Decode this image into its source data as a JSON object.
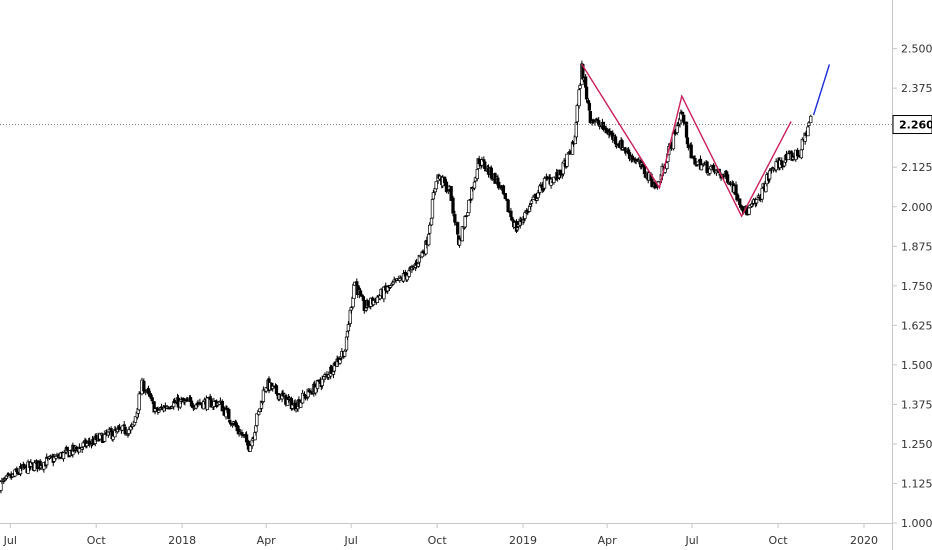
{
  "chart_data": {
    "type": "candlestick",
    "title": "",
    "xlabel": "",
    "ylabel": "",
    "ylim": [
      1.0,
      2.6
    ],
    "xlim": [
      "2017-06-20",
      "2020-01-31"
    ],
    "grid": false,
    "y_ticks": [
      "2.500",
      "2.375",
      "2.250",
      "2.125",
      "2.000",
      "1.875",
      "1.750",
      "1.625",
      "1.500",
      "1.375",
      "1.250",
      "1.125",
      "1.000"
    ],
    "x_ticks": [
      {
        "label": "Jul",
        "date": "2017-07-01"
      },
      {
        "label": "Oct",
        "date": "2017-10-01"
      },
      {
        "label": "2018",
        "date": "2018-01-01"
      },
      {
        "label": "Apr",
        "date": "2018-04-01"
      },
      {
        "label": "Jul",
        "date": "2018-07-01"
      },
      {
        "label": "Oct",
        "date": "2018-10-01"
      },
      {
        "label": "2019",
        "date": "2019-01-01"
      },
      {
        "label": "Apr",
        "date": "2019-04-01"
      },
      {
        "label": "Jul",
        "date": "2019-07-01"
      },
      {
        "label": "Oct",
        "date": "2019-10-01"
      },
      {
        "label": "2020",
        "date": "2020-01-01"
      }
    ],
    "price_line": {
      "value": 2.26,
      "label": "2.260"
    },
    "path_points": [
      [
        "2017-06-20",
        1.12
      ],
      [
        "2017-07-15",
        1.17
      ],
      [
        "2017-08-15",
        1.2
      ],
      [
        "2017-09-15",
        1.24
      ],
      [
        "2017-10-15",
        1.28
      ],
      [
        "2017-11-10",
        1.3
      ],
      [
        "2017-11-20",
        1.44
      ],
      [
        "2017-12-05",
        1.35
      ],
      [
        "2017-12-20",
        1.38
      ],
      [
        "2018-01-20",
        1.38
      ],
      [
        "2018-02-10",
        1.38
      ],
      [
        "2018-03-01",
        1.3
      ],
      [
        "2018-03-15",
        1.24
      ],
      [
        "2018-04-01",
        1.44
      ],
      [
        "2018-05-01",
        1.37
      ],
      [
        "2018-06-01",
        1.45
      ],
      [
        "2018-06-25",
        1.55
      ],
      [
        "2018-07-05",
        1.77
      ],
      [
        "2018-07-15",
        1.68
      ],
      [
        "2018-08-15",
        1.75
      ],
      [
        "2018-09-05",
        1.8
      ],
      [
        "2018-09-20",
        1.88
      ],
      [
        "2018-10-01",
        2.1
      ],
      [
        "2018-10-15",
        2.05
      ],
      [
        "2018-10-25",
        1.88
      ],
      [
        "2018-11-15",
        2.15
      ],
      [
        "2018-12-05",
        2.08
      ],
      [
        "2018-12-25",
        1.93
      ],
      [
        "2019-01-25",
        2.08
      ],
      [
        "2019-02-10",
        2.1
      ],
      [
        "2019-02-25",
        2.2
      ],
      [
        "2019-03-05",
        2.44
      ],
      [
        "2019-03-15",
        2.28
      ],
      [
        "2019-04-01",
        2.24
      ],
      [
        "2019-05-01",
        2.15
      ],
      [
        "2019-05-25",
        2.06
      ],
      [
        "2019-06-20",
        2.3
      ],
      [
        "2019-07-01",
        2.15
      ],
      [
        "2019-07-20",
        2.12
      ],
      [
        "2019-08-10",
        2.09
      ],
      [
        "2019-08-28",
        1.98
      ],
      [
        "2019-09-10",
        2.02
      ],
      [
        "2019-09-25",
        2.12
      ],
      [
        "2019-10-10",
        2.15
      ],
      [
        "2019-10-25",
        2.17
      ],
      [
        "2019-11-05",
        2.28
      ]
    ],
    "pattern_line": {
      "color": "#cc1f5a",
      "points": [
        [
          "2019-03-05",
          2.45
        ],
        [
          "2019-05-27",
          2.06
        ],
        [
          "2019-06-20",
          2.35
        ],
        [
          "2019-08-23",
          1.97
        ],
        [
          "2019-10-15",
          2.27
        ]
      ]
    },
    "projection_line": {
      "color": "#1a2bd8",
      "points": [
        [
          "2019-11-08",
          2.29
        ],
        [
          "2019-11-25",
          2.45
        ]
      ]
    },
    "candle_color": "#000000",
    "up_fill": "#ffffff",
    "down_fill": "#000000"
  }
}
